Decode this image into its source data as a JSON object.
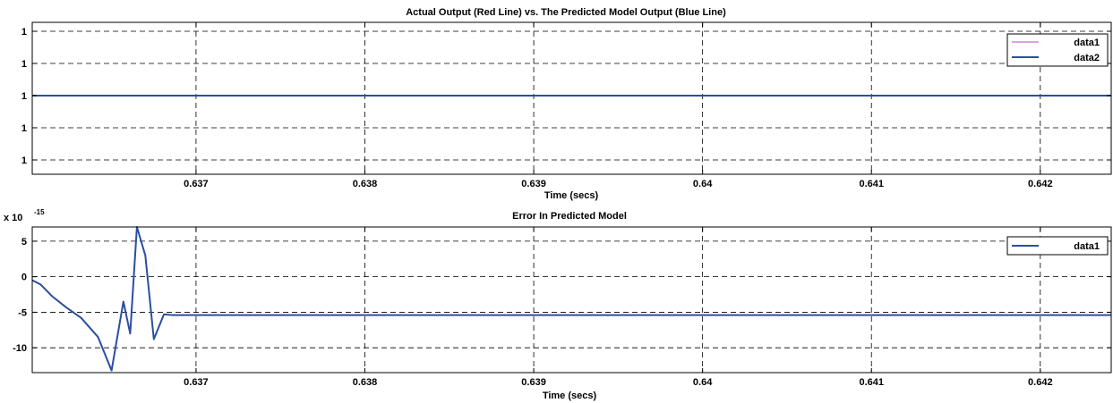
{
  "chart_data": [
    {
      "type": "line",
      "title": "Actual Output (Red Line) vs. The Predicted Model Output (Blue Line)",
      "xlabel": "Time (secs)",
      "ylabel": "",
      "xlim": [
        0.63603,
        0.64242
      ],
      "ylim": [
        0.6,
        1.45
      ],
      "x_ticks": [
        0.637,
        0.638,
        0.639,
        0.64,
        0.641,
        0.642
      ],
      "x_tick_labels": [
        "0.637",
        "0.638",
        "0.639",
        "0.64",
        "0.641",
        "0.642"
      ],
      "y_ticks": [
        0.68,
        0.86,
        1.04,
        1.22,
        1.4
      ],
      "y_tick_labels": [
        "1",
        "1",
        "1",
        "1",
        "1"
      ],
      "grid": true,
      "legend_position": "top-right",
      "series": [
        {
          "name": "data1",
          "color": "#cc88cc",
          "x": [
            0.63603,
            0.64242
          ],
          "y": [
            1.04,
            1.04
          ]
        },
        {
          "name": "data2",
          "color": "#2b4ea0",
          "x": [
            0.63603,
            0.64242
          ],
          "y": [
            1.04,
            1.04
          ]
        }
      ]
    },
    {
      "type": "line",
      "title": "Error In Predicted Model",
      "xlabel": "Time (secs)",
      "ylabel": "",
      "y_exponent_label": "x 10",
      "y_exponent_power": "-15",
      "xlim": [
        0.63603,
        0.64242
      ],
      "ylim": [
        -13.5,
        7
      ],
      "x_ticks": [
        0.637,
        0.638,
        0.639,
        0.64,
        0.641,
        0.642
      ],
      "x_tick_labels": [
        "0.637",
        "0.638",
        "0.639",
        "0.64",
        "0.641",
        "0.642"
      ],
      "y_ticks": [
        -10,
        -5,
        0,
        5
      ],
      "y_tick_labels": [
        "-10",
        "-5",
        "0",
        "5"
      ],
      "grid": true,
      "legend_position": "top-right",
      "series": [
        {
          "name": "data1",
          "color": "#2b4ea0",
          "x": [
            0.63603,
            0.63608,
            0.63615,
            0.63623,
            0.63632,
            0.63642,
            0.6365,
            0.63657,
            0.63661,
            0.63665,
            0.6367,
            0.63675,
            0.63681,
            0.63686,
            0.6369,
            0.637,
            0.64242
          ],
          "y": [
            -0.5,
            -1.1,
            -2.8,
            -4.3,
            -5.8,
            -8.5,
            -13.2,
            -3.5,
            -8.0,
            7.0,
            3.0,
            -8.8,
            -5.3,
            -5.4,
            -5.4,
            -5.4,
            -5.4
          ]
        }
      ]
    }
  ]
}
